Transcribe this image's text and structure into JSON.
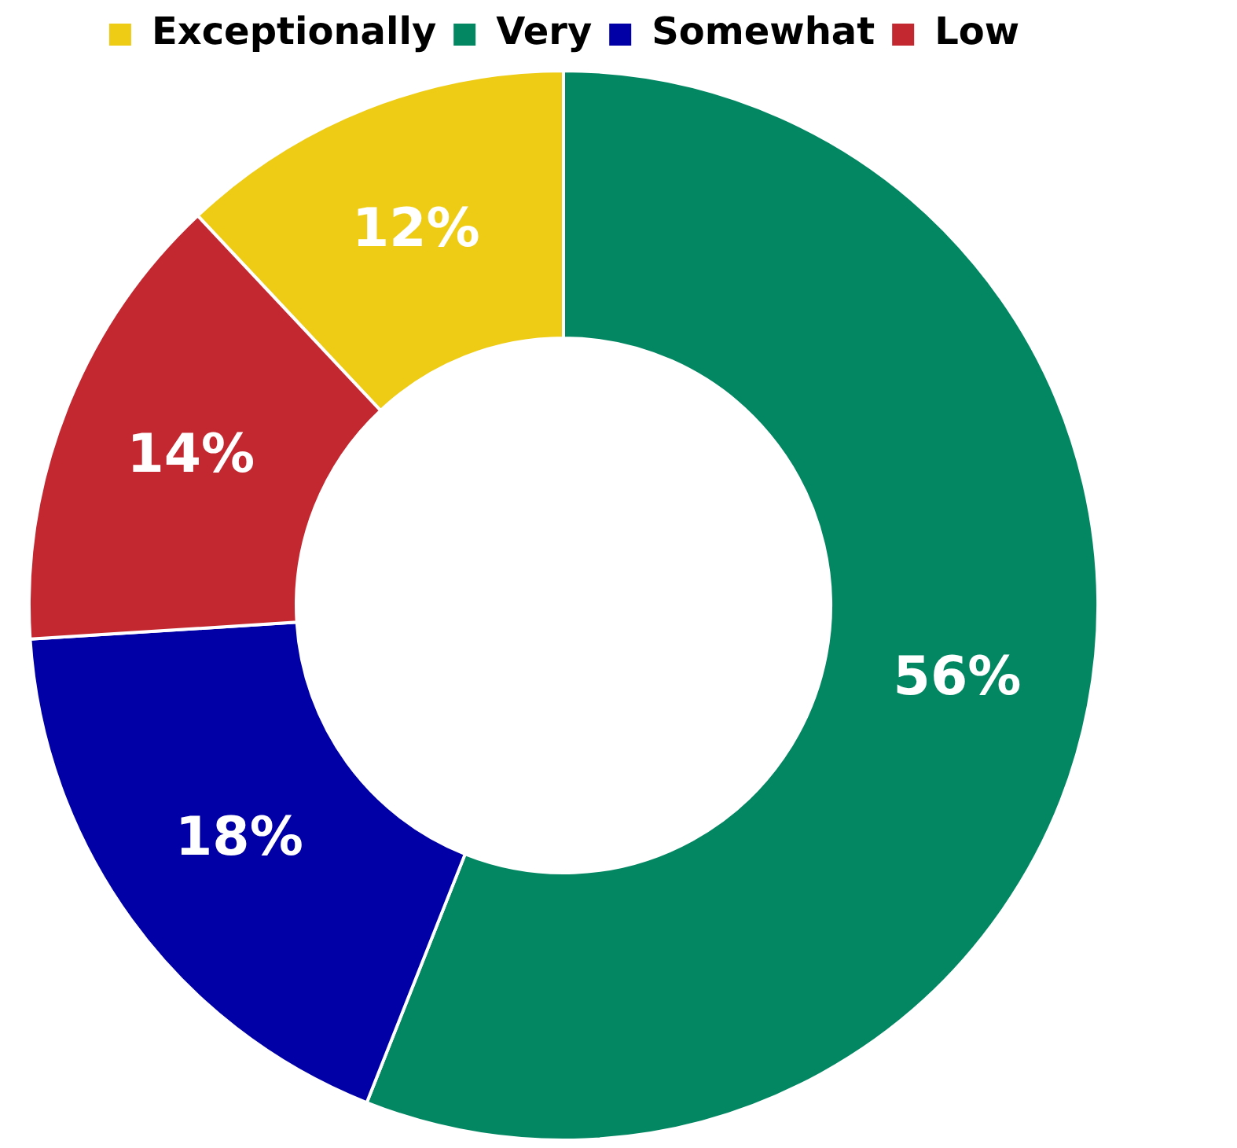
{
  "chart_data": {
    "type": "donut",
    "categories": [
      "Exceptionally",
      "Very",
      "Somewhat",
      "Low"
    ],
    "values": [
      12,
      56,
      18,
      14
    ],
    "colors": [
      "#eecc16",
      "#038762",
      "#0000a6",
      "#c3272f"
    ],
    "value_labels": [
      "12%",
      "56%",
      "18%",
      "14%"
    ],
    "legend": "top"
  }
}
